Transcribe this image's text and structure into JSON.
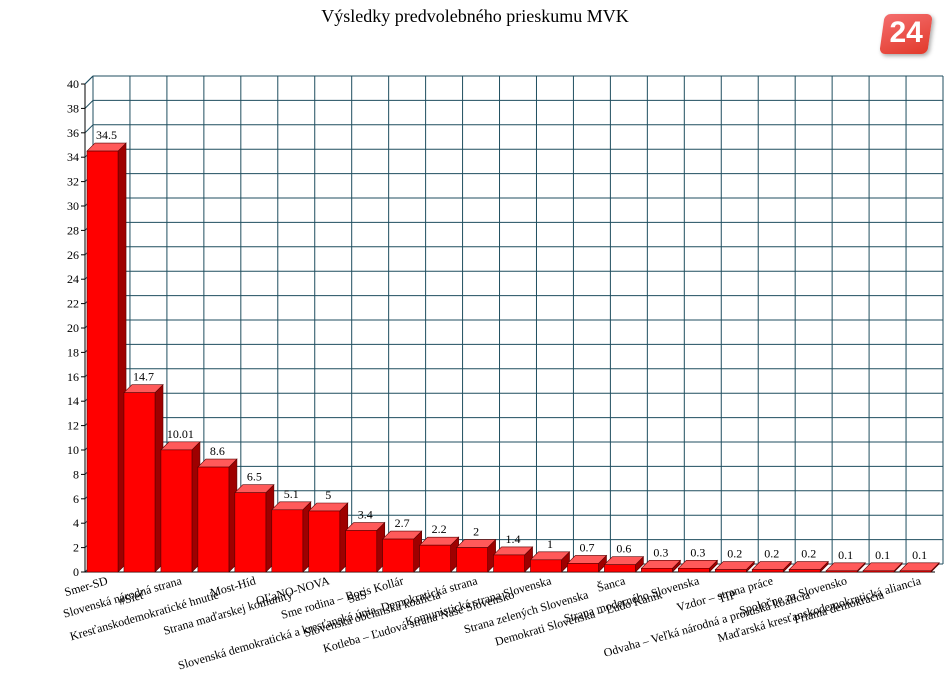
{
  "page": {
    "logo_text": "24"
  },
  "chart_data": {
    "type": "bar",
    "title": "Výsledky predvolebného prieskumu MVK",
    "xlabel": "",
    "ylabel": "",
    "ylim": [
      0,
      40
    ],
    "yticks": [
      0,
      2,
      4,
      6,
      8,
      10,
      12,
      14,
      16,
      18,
      20,
      22,
      24,
      26,
      28,
      30,
      32,
      34,
      36,
      38,
      40
    ],
    "grid": true,
    "legend": "none",
    "bar_color": "#ff0000",
    "grid_color": "#1f4e5f",
    "categories": [
      "Smer-SD",
      "#Sieť",
      "Slovenská národná strana",
      "Kresťanskodemo­kratické hnutie",
      "Most-Híd",
      "Strana maďarskej komunity",
      "OĽaNO-NOVA",
      "SaS",
      "Sme rodina – Boris Kollár",
      "Slovenská občianska koalícia",
      "Slovenská demokratická a kresťanská únia–Demokratická strana",
      "Kotleba – Ľudová strana Naše Slovensko",
      "Komunistická strana Slovenska",
      "Strana zelených Slovenska",
      "Šanca",
      "Demokrati Slovenska – Ľudo Kaník",
      "Strana moderného Slovenska",
      "TIP",
      "Vzdor – strana práce",
      "Odvaha – Veľká národná a proruská koalícia",
      "Spoločne za Slovensko",
      "Priama demokracia",
      "Maďarská kresťanskodemo­kratická aliancia"
    ],
    "values": [
      34.5,
      14.7,
      10.01,
      8.6,
      6.5,
      5.1,
      5,
      3.4,
      2.7,
      2.2,
      2,
      1.4,
      1,
      0.7,
      0.6,
      0.3,
      0.3,
      0.2,
      0.2,
      0.2,
      0.1,
      0.1,
      0.1
    ],
    "value_labels": [
      "34.5",
      "14.7",
      "10.01",
      "8.6",
      "6.5",
      "5.1",
      "5",
      "3.4",
      "2.7",
      "2.2",
      "2",
      "1.4",
      "1",
      "0.7",
      "0.6",
      "0.3",
      "0.3",
      "0.2",
      "0.2",
      "0.2",
      "0.1",
      "0.1",
      "0.1"
    ]
  }
}
